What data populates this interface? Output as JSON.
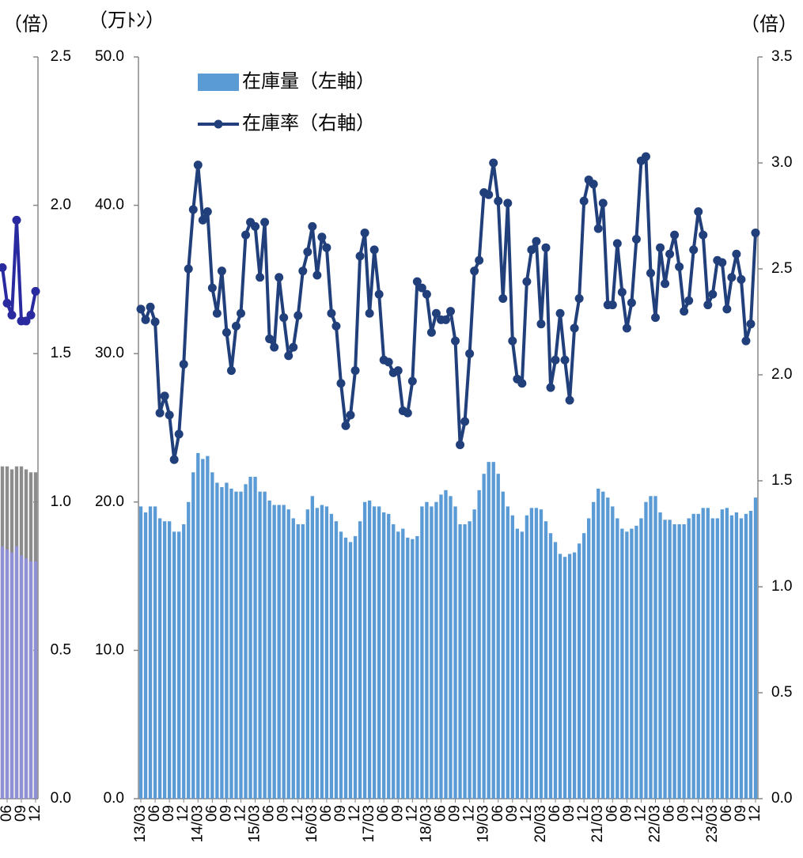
{
  "chart_data": [
    {
      "type": "combo",
      "ylabel": "（倍）",
      "categories": [
        null,
        "06",
        null,
        null,
        "09",
        null,
        null,
        "12"
      ],
      "series": [
        {
          "type": "bar",
          "color": "#8c8c8c",
          "values": [
            1.12,
            1.12,
            1.11,
            1.12,
            1.12,
            1.11,
            1.1,
            1.1
          ]
        },
        {
          "type": "bar",
          "color": "#8f90d6",
          "values": [
            0.85,
            0.84,
            0.83,
            0.85,
            0.82,
            0.81,
            0.8,
            0.8
          ]
        },
        {
          "type": "line",
          "color": "#2a2aa0",
          "values": [
            1.79,
            1.67,
            1.63,
            1.95,
            1.61,
            1.61,
            1.63,
            1.71
          ]
        }
      ],
      "ylim": [
        0,
        2.5
      ],
      "yticks": [
        {
          "value": 0,
          "label": "0.0"
        },
        {
          "value": 0.5,
          "label": "0.5"
        },
        {
          "value": 1,
          "label": "1.0"
        },
        {
          "value": 1.5,
          "label": "1.5"
        },
        {
          "value": 2,
          "label": "2.0"
        },
        {
          "value": 2.5,
          "label": "2.5"
        }
      ]
    },
    {
      "type": "combo",
      "ylabel": "（万ﾄﾝ）",
      "y2label": "（倍）",
      "categories": [
        "13/03",
        null,
        null,
        "06",
        null,
        null,
        "09",
        null,
        null,
        "12",
        null,
        null,
        "14/03",
        null,
        null,
        "06",
        null,
        null,
        "09",
        null,
        null,
        "12",
        null,
        null,
        "15/03",
        null,
        null,
        "06",
        null,
        null,
        "09",
        null,
        null,
        "12",
        null,
        null,
        "16/03",
        null,
        null,
        "06",
        null,
        null,
        "09",
        null,
        null,
        "12",
        null,
        null,
        "17/03",
        null,
        null,
        "06",
        null,
        null,
        "09",
        null,
        null,
        "12",
        null,
        null,
        "18/03",
        null,
        null,
        "06",
        null,
        null,
        "09",
        null,
        null,
        "12",
        null,
        null,
        "19/03",
        null,
        null,
        "06",
        null,
        null,
        "09",
        null,
        null,
        "12",
        null,
        null,
        "20/03",
        null,
        null,
        "06",
        null,
        null,
        "09",
        null,
        null,
        "12",
        null,
        null,
        "21/03",
        null,
        null,
        "06",
        null,
        null,
        "09",
        null,
        null,
        "12",
        null,
        null,
        "22/03",
        null,
        null,
        "06",
        null,
        null,
        "09",
        null,
        null,
        "12",
        null,
        null,
        "23/03",
        null,
        null,
        "06",
        null,
        null,
        "09",
        null,
        null,
        "12"
      ],
      "series": [
        {
          "name": "在庫量（左軸）",
          "type": "bar",
          "color": "#5b9bd5",
          "values": [
            19.7,
            19.3,
            19.7,
            19.7,
            18.9,
            18.7,
            18.7,
            18.0,
            18.0,
            18.5,
            20.0,
            22.0,
            23.3,
            22.9,
            23.1,
            22.0,
            21.3,
            21.0,
            21.3,
            20.9,
            20.7,
            20.7,
            21.2,
            21.7,
            21.7,
            20.7,
            20.7,
            20.1,
            19.8,
            19.8,
            19.8,
            19.5,
            18.9,
            18.5,
            18.5,
            19.5,
            20.4,
            19.6,
            19.8,
            19.7,
            19.2,
            18.7,
            18.0,
            17.6,
            17.3,
            17.7,
            18.7,
            20.0,
            20.1,
            19.7,
            19.7,
            19.3,
            19.2,
            18.5,
            18.0,
            18.2,
            17.6,
            17.5,
            17.7,
            19.7,
            20.0,
            19.7,
            20.0,
            20.5,
            20.8,
            20.4,
            19.7,
            18.5,
            18.5,
            18.7,
            19.5,
            20.8,
            21.9,
            22.7,
            22.7,
            21.9,
            20.7,
            19.7,
            19.1,
            18.2,
            18.0,
            19.1,
            19.6,
            19.6,
            19.5,
            18.7,
            17.9,
            17.3,
            16.5,
            16.3,
            16.5,
            16.6,
            17.2,
            17.9,
            18.9,
            20.0,
            20.9,
            20.7,
            20.3,
            19.7,
            18.9,
            18.2,
            18.0,
            18.2,
            18.4,
            18.9,
            20.0,
            20.4,
            20.4,
            19.3,
            18.8,
            18.8,
            18.5,
            18.5,
            18.5,
            18.9,
            19.2,
            19.2,
            19.6,
            19.6,
            18.9,
            18.9,
            19.5,
            19.6,
            19.1,
            19.3,
            18.9,
            19.2,
            19.4,
            20.3
          ]
        },
        {
          "name": "在庫率（右軸）",
          "type": "line",
          "axis": "y2",
          "color": "#213f7a",
          "values": [
            2.31,
            2.26,
            2.32,
            2.25,
            1.82,
            1.9,
            1.81,
            1.6,
            1.72,
            2.05,
            2.5,
            2.78,
            2.99,
            2.73,
            2.77,
            2.41,
            2.29,
            2.49,
            2.2,
            2.02,
            2.23,
            2.29,
            2.66,
            2.72,
            2.7,
            2.46,
            2.72,
            2.17,
            2.13,
            2.46,
            2.27,
            2.09,
            2.13,
            2.28,
            2.49,
            2.58,
            2.7,
            2.47,
            2.65,
            2.6,
            2.29,
            2.23,
            1.96,
            1.76,
            1.81,
            2.02,
            2.56,
            2.67,
            2.29,
            2.59,
            2.38,
            2.07,
            2.06,
            2.01,
            2.02,
            1.83,
            1.82,
            1.97,
            2.44,
            2.41,
            2.38,
            2.2,
            2.29,
            2.26,
            2.26,
            2.3,
            2.16,
            1.67,
            1.78,
            2.1,
            2.49,
            2.54,
            2.86,
            2.85,
            3.0,
            2.82,
            2.36,
            2.81,
            2.16,
            1.98,
            1.96,
            2.44,
            2.59,
            2.63,
            2.24,
            2.6,
            1.94,
            2.07,
            2.29,
            2.07,
            1.88,
            2.22,
            2.36,
            2.82,
            2.92,
            2.9,
            2.69,
            2.81,
            2.33,
            2.33,
            2.62,
            2.39,
            2.22,
            2.34,
            2.64,
            3.01,
            3.03,
            2.48,
            2.27,
            2.6,
            2.43,
            2.57,
            2.66,
            2.51,
            2.3,
            2.35,
            2.59,
            2.77,
            2.66,
            2.33,
            2.38,
            2.54,
            2.53,
            2.31,
            2.46,
            2.57,
            2.45,
            2.16,
            2.24,
            2.67
          ]
        }
      ],
      "ylim": [
        0,
        50
      ],
      "yticks": [
        {
          "value": 0,
          "label": "0.0"
        },
        {
          "value": 10,
          "label": "10.0"
        },
        {
          "value": 20,
          "label": "20.0"
        },
        {
          "value": 30,
          "label": "30.0"
        },
        {
          "value": 40,
          "label": "40.0"
        },
        {
          "value": 50,
          "label": "50.0"
        }
      ],
      "y2lim": [
        0,
        3.5
      ],
      "y2ticks": [
        {
          "value": 0,
          "label": "0.0"
        },
        {
          "value": 0.5,
          "label": "0.5"
        },
        {
          "value": 1,
          "label": "1.0"
        },
        {
          "value": 1.5,
          "label": "1.5"
        },
        {
          "value": 2,
          "label": "2.0"
        },
        {
          "value": 2.5,
          "label": "2.5"
        },
        {
          "value": 3,
          "label": "3.0"
        },
        {
          "value": 3.5,
          "label": "3.5"
        }
      ]
    }
  ]
}
